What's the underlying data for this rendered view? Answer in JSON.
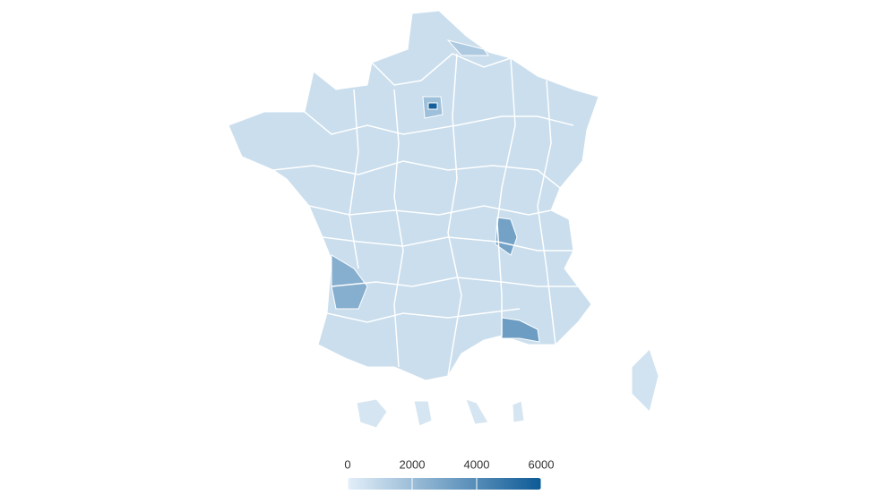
{
  "chart_data": {
    "type": "choropleth",
    "values": [
      700,
      500,
      2600,
      3100,
      3300,
      1500,
      1900,
      5800,
      400,
      400,
      400,
      400
    ],
    "colorbar": {
      "range": [
        0,
        6000
      ],
      "ticks": [
        0,
        2000,
        4000,
        6000
      ],
      "colors": [
        "#e3eff9",
        "#0d5a96"
      ]
    }
  }
}
